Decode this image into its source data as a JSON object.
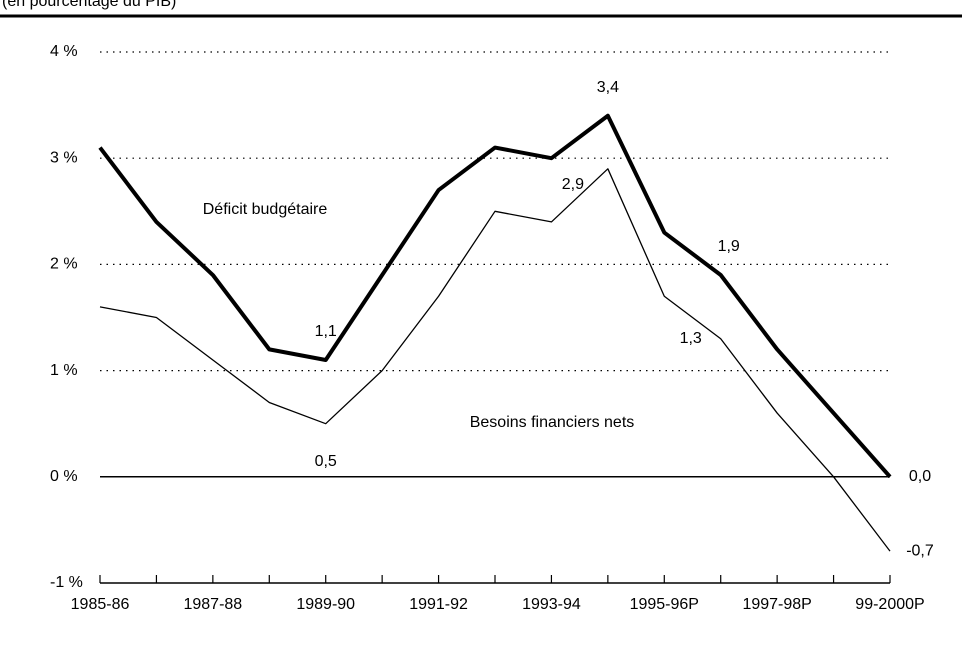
{
  "chart_data": {
    "type": "line",
    "subtitle": "(en pourcentage du PIB)",
    "categories": [
      "1985-86",
      null,
      "1987-88",
      null,
      "1989-90",
      null,
      "1991-92",
      null,
      "1993-94",
      null,
      "1995-96P",
      null,
      "1997-98P",
      null,
      "99-2000P"
    ],
    "series": [
      {
        "name": "Déficit budgétaire",
        "color": "#000000",
        "values": [
          3.1,
          2.4,
          1.9,
          1.2,
          1.1,
          1.9,
          2.7,
          3.1,
          3.0,
          3.4,
          2.3,
          1.9,
          1.2,
          0.6,
          0.0
        ],
        "value_labels": [
          null,
          null,
          null,
          null,
          "1,1",
          null,
          null,
          null,
          null,
          "3,4",
          null,
          "1,9",
          null,
          null,
          "0,0"
        ]
      },
      {
        "name": "Besoins financiers nets",
        "color": "#000000",
        "values": [
          1.6,
          1.5,
          1.1,
          0.7,
          0.5,
          1.0,
          1.7,
          2.5,
          2.4,
          2.9,
          1.7,
          1.3,
          0.6,
          0.0,
          -0.7
        ],
        "value_labels": [
          null,
          null,
          null,
          null,
          "0,5",
          null,
          null,
          null,
          null,
          "2,9",
          null,
          "1,3",
          null,
          null,
          "-0,7"
        ]
      }
    ],
    "ylim": [
      -1,
      4
    ],
    "yticks": [
      {
        "value": -1,
        "label": "-1 %"
      },
      {
        "value": 0,
        "label": "0 %"
      },
      {
        "value": 1,
        "label": "1 %"
      },
      {
        "value": 2,
        "label": "2 %"
      },
      {
        "value": 3,
        "label": "3 %"
      },
      {
        "value": 4,
        "label": "4 %"
      }
    ],
    "grid": true
  }
}
